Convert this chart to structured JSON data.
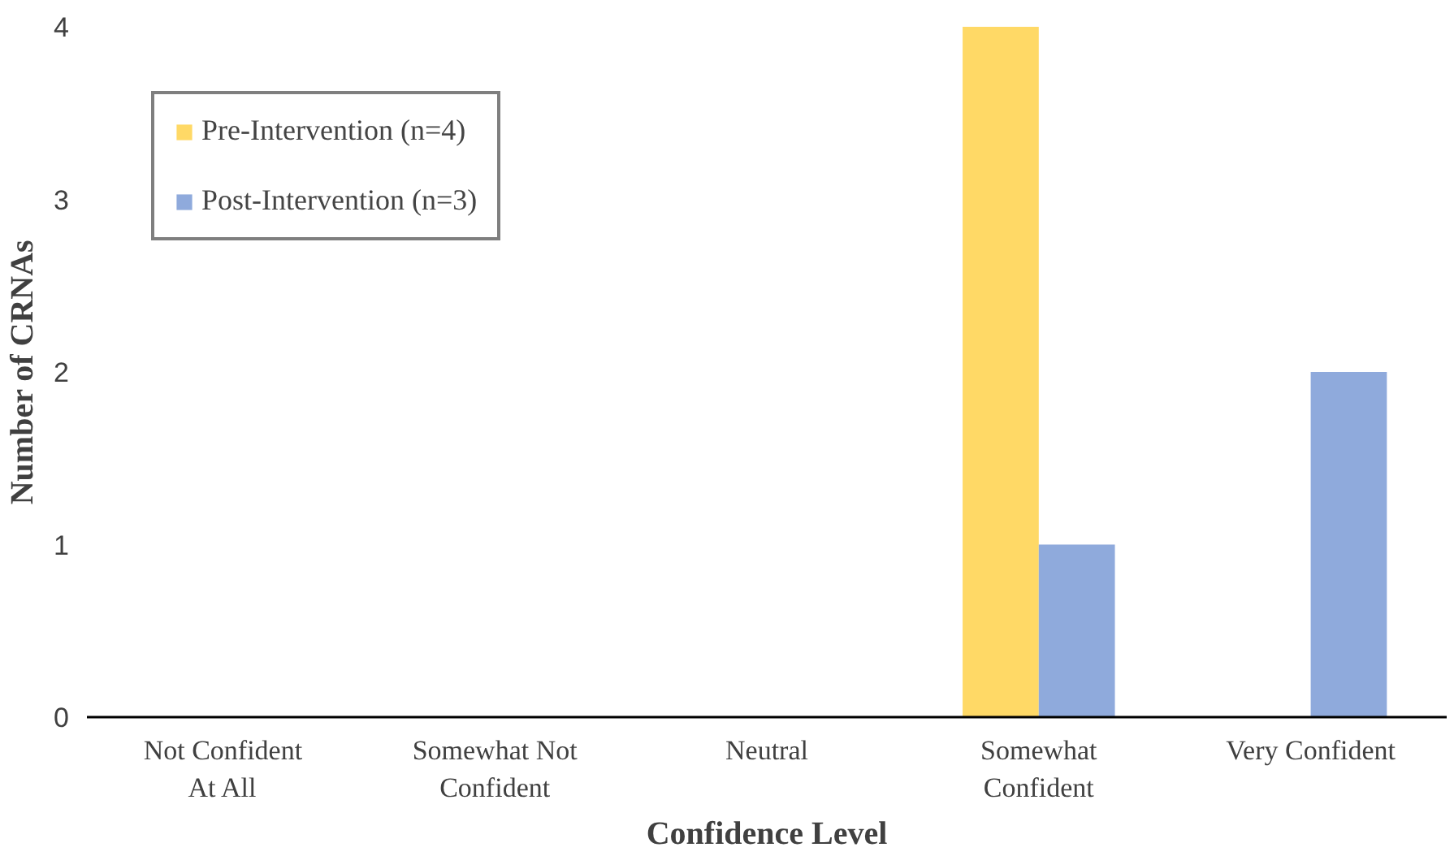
{
  "chart_data": {
    "type": "bar",
    "xlabel": "Confidence Level",
    "ylabel": "Number of CRNAs",
    "categories": [
      "Not Confident At All",
      "Somewhat Not Confident",
      "Neutral",
      "Somewhat Confident",
      "Very Confident"
    ],
    "series": [
      {
        "name": "Pre-Intervention (n=4)",
        "color": "#ffd966",
        "values": [
          0,
          0,
          0,
          4,
          0
        ]
      },
      {
        "name": "Post-Intervention (n=3)",
        "color": "#8faadc",
        "values": [
          0,
          0,
          0,
          1,
          2
        ]
      }
    ],
    "ylim": [
      0,
      4
    ],
    "yticks": [
      0,
      1,
      2,
      3,
      4
    ],
    "grid": false,
    "legend": "top left"
  }
}
